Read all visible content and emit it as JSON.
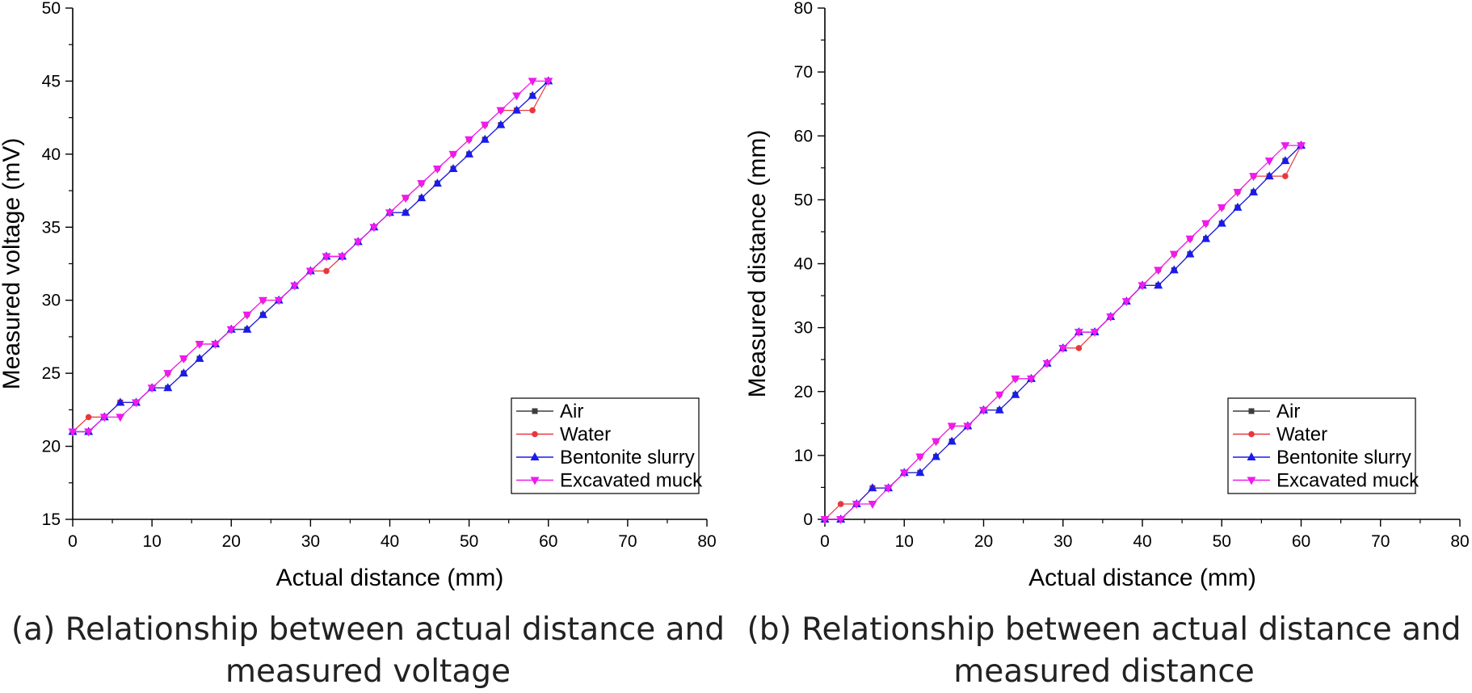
{
  "chart_data": [
    {
      "type": "line",
      "caption_lines": [
        "(a) Relationship between actual distance and",
        "measured voltage"
      ],
      "xlabel": "Actual distance (mm)",
      "ylabel": "Measured voltage (mV)",
      "xlim": [
        0,
        80
      ],
      "ylim": [
        15,
        50
      ],
      "xticks": [
        0,
        10,
        20,
        30,
        40,
        50,
        60,
        70,
        80
      ],
      "yticks": [
        15,
        20,
        25,
        30,
        35,
        40,
        45,
        50
      ],
      "grid": false,
      "legend_position": "bottom-right",
      "series": [
        {
          "name": "Air",
          "color": "#3d3d3d",
          "marker": "square",
          "x": [
            0,
            2,
            4,
            6,
            8,
            10,
            12,
            14,
            16,
            18,
            20,
            22,
            24,
            26,
            28,
            30,
            32,
            34,
            36,
            38,
            40,
            42,
            44,
            46,
            48,
            50,
            52,
            54,
            56,
            58,
            60
          ],
          "y": [
            21,
            21,
            22,
            23,
            23,
            24,
            24,
            25,
            26,
            27,
            28,
            28,
            29,
            30,
            31,
            32,
            33,
            33,
            34,
            35,
            36,
            36,
            37,
            38,
            39,
            40,
            41,
            42,
            43,
            44,
            45
          ]
        },
        {
          "name": "Water",
          "color": "#e8383d",
          "marker": "circle",
          "x": [
            0,
            2,
            4,
            6,
            8,
            10,
            12,
            14,
            16,
            18,
            20,
            22,
            24,
            26,
            28,
            30,
            32,
            34,
            36,
            38,
            40,
            42,
            44,
            46,
            48,
            50,
            52,
            54,
            56,
            58,
            60
          ],
          "y": [
            21,
            22,
            22,
            23,
            23,
            24,
            25,
            26,
            27,
            27,
            28,
            29,
            30,
            30,
            31,
            32,
            32,
            33,
            34,
            35,
            36,
            37,
            38,
            39,
            40,
            41,
            42,
            43,
            43,
            43,
            45
          ]
        },
        {
          "name": "Bentonite slurry",
          "color": "#1a1aee",
          "marker": "triangle-up",
          "x": [
            0,
            2,
            4,
            6,
            8,
            10,
            12,
            14,
            16,
            18,
            20,
            22,
            24,
            26,
            28,
            30,
            32,
            34,
            36,
            38,
            40,
            42,
            44,
            46,
            48,
            50,
            52,
            54,
            56,
            58,
            60
          ],
          "y": [
            21,
            21,
            22,
            23,
            23,
            24,
            24,
            25,
            26,
            27,
            28,
            28,
            29,
            30,
            31,
            32,
            33,
            33,
            34,
            35,
            36,
            36,
            37,
            38,
            39,
            40,
            41,
            42,
            43,
            44,
            45
          ]
        },
        {
          "name": "Excavated muck",
          "color": "#ee1aee",
          "marker": "triangle-down",
          "x": [
            0,
            2,
            4,
            6,
            8,
            10,
            12,
            14,
            16,
            18,
            20,
            22,
            24,
            26,
            28,
            30,
            32,
            34,
            36,
            38,
            40,
            42,
            44,
            46,
            48,
            50,
            52,
            54,
            56,
            58,
            60
          ],
          "y": [
            21,
            21,
            22,
            22,
            23,
            24,
            25,
            26,
            27,
            27,
            28,
            29,
            30,
            30,
            31,
            32,
            33,
            33,
            34,
            35,
            36,
            37,
            38,
            39,
            40,
            41,
            42,
            43,
            44,
            45,
            45
          ]
        }
      ]
    },
    {
      "type": "line",
      "caption_lines": [
        "(b) Relationship between actual distance and",
        "measured distance"
      ],
      "xlabel": "Actual distance (mm)",
      "ylabel": "Measured distance (mm)",
      "xlim": [
        0,
        80
      ],
      "ylim": [
        0,
        80
      ],
      "xticks": [
        0,
        10,
        20,
        30,
        40,
        50,
        60,
        70,
        80
      ],
      "yticks": [
        0,
        10,
        20,
        30,
        40,
        50,
        60,
        70,
        80
      ],
      "grid": false,
      "legend_position": "bottom-right",
      "series": [
        {
          "name": "Air",
          "color": "#3d3d3d",
          "marker": "square",
          "x": [
            0,
            2,
            4,
            6,
            8,
            10,
            12,
            14,
            16,
            18,
            20,
            22,
            24,
            26,
            28,
            30,
            32,
            34,
            36,
            38,
            40,
            42,
            44,
            46,
            48,
            50,
            52,
            54,
            56,
            58,
            60
          ],
          "y": [
            0,
            0,
            2.4,
            4.9,
            4.9,
            7.3,
            7.3,
            9.8,
            12.2,
            14.6,
            17.1,
            17.1,
            19.5,
            22.0,
            24.4,
            26.8,
            29.3,
            29.3,
            31.7,
            34.1,
            36.6,
            36.6,
            39.0,
            41.5,
            43.9,
            46.3,
            48.8,
            51.2,
            53.7,
            56.1,
            58.5
          ]
        },
        {
          "name": "Water",
          "color": "#e8383d",
          "marker": "circle",
          "x": [
            0,
            2,
            4,
            6,
            8,
            10,
            12,
            14,
            16,
            18,
            20,
            22,
            24,
            26,
            28,
            30,
            32,
            34,
            36,
            38,
            40,
            42,
            44,
            46,
            48,
            50,
            52,
            54,
            56,
            58,
            60
          ],
          "y": [
            0,
            2.4,
            2.4,
            4.9,
            4.9,
            7.3,
            9.8,
            12.2,
            14.6,
            14.6,
            17.1,
            19.5,
            22.0,
            22.0,
            24.4,
            26.8,
            26.8,
            29.3,
            31.7,
            34.1,
            36.6,
            39.0,
            41.5,
            43.9,
            46.3,
            48.8,
            51.2,
            53.7,
            53.7,
            53.7,
            58.5
          ]
        },
        {
          "name": "Bentonite slurry",
          "color": "#1a1aee",
          "marker": "triangle-up",
          "x": [
            0,
            2,
            4,
            6,
            8,
            10,
            12,
            14,
            16,
            18,
            20,
            22,
            24,
            26,
            28,
            30,
            32,
            34,
            36,
            38,
            40,
            42,
            44,
            46,
            48,
            50,
            52,
            54,
            56,
            58,
            60
          ],
          "y": [
            0,
            0,
            2.4,
            4.9,
            4.9,
            7.3,
            7.3,
            9.8,
            12.2,
            14.6,
            17.1,
            17.1,
            19.5,
            22.0,
            24.4,
            26.8,
            29.3,
            29.3,
            31.7,
            34.1,
            36.6,
            36.6,
            39.0,
            41.5,
            43.9,
            46.3,
            48.8,
            51.2,
            53.7,
            56.1,
            58.5
          ]
        },
        {
          "name": "Excavated muck",
          "color": "#ee1aee",
          "marker": "triangle-down",
          "x": [
            0,
            2,
            4,
            6,
            8,
            10,
            12,
            14,
            16,
            18,
            20,
            22,
            24,
            26,
            28,
            30,
            32,
            34,
            36,
            38,
            40,
            42,
            44,
            46,
            48,
            50,
            52,
            54,
            56,
            58,
            60
          ],
          "y": [
            0,
            0,
            2.4,
            2.4,
            4.9,
            7.3,
            9.8,
            12.2,
            14.6,
            14.6,
            17.1,
            19.5,
            22.0,
            22.0,
            24.4,
            26.8,
            29.3,
            29.3,
            31.7,
            34.1,
            36.6,
            39.0,
            41.5,
            43.9,
            46.3,
            48.8,
            51.2,
            53.7,
            56.1,
            58.5,
            58.5
          ]
        }
      ]
    }
  ]
}
